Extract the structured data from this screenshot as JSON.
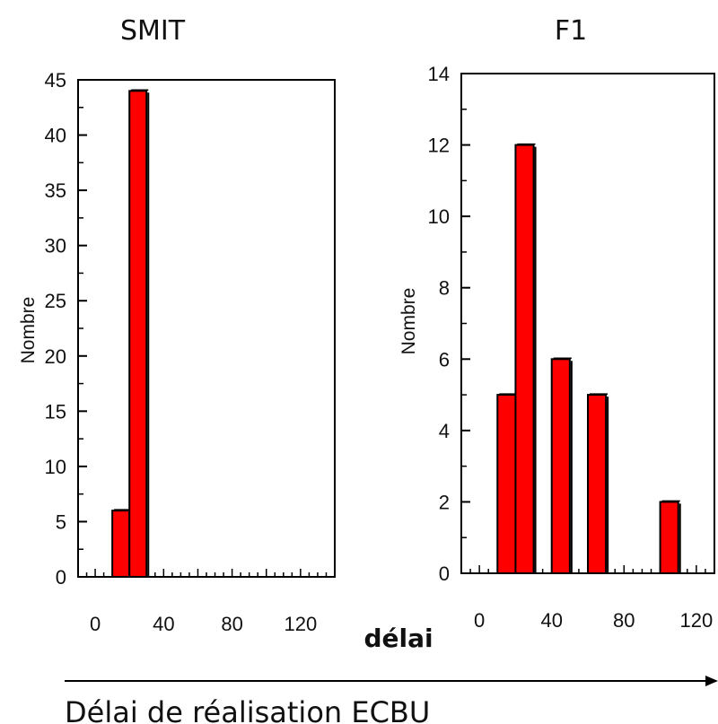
{
  "footer_arrow_label": "délai",
  "footer_caption": "Délai de réalisation ECBU",
  "colors": {
    "bar_fill": "#ff0000",
    "bar_stroke": "#000000",
    "axis": "#000000"
  },
  "chart_data": [
    {
      "type": "bar",
      "title": "SMIT",
      "ylabel": "Nombre",
      "xlabel": "",
      "xlim": [
        -10,
        140
      ],
      "ylim": [
        0,
        45
      ],
      "xticks": [
        0,
        40,
        80,
        120
      ],
      "yticks": [
        0,
        5,
        10,
        15,
        20,
        25,
        30,
        35,
        40,
        45
      ],
      "bin_width": 10,
      "bins": [
        {
          "x0": 10,
          "x1": 20,
          "value": 6
        },
        {
          "x0": 20,
          "x1": 30,
          "value": 44
        }
      ],
      "data_labels": [],
      "grid": false,
      "legend": "none"
    },
    {
      "type": "bar",
      "title": "F1",
      "ylabel": "Nombre",
      "xlabel": "",
      "xlim": [
        -10,
        130
      ],
      "ylim": [
        0,
        14
      ],
      "xticks": [
        0,
        40,
        80,
        120
      ],
      "yticks": [
        0,
        2,
        4,
        6,
        8,
        10,
        12,
        14
      ],
      "bin_width": 10,
      "bins": [
        {
          "x0": 10,
          "x1": 20,
          "value": 5
        },
        {
          "x0": 20,
          "x1": 30,
          "value": 12
        },
        {
          "x0": 40,
          "x1": 50,
          "value": 6
        },
        {
          "x0": 60,
          "x1": 70,
          "value": 5
        },
        {
          "x0": 100,
          "x1": 110,
          "value": 2
        }
      ],
      "data_labels": [],
      "grid": false,
      "legend": "none"
    }
  ]
}
